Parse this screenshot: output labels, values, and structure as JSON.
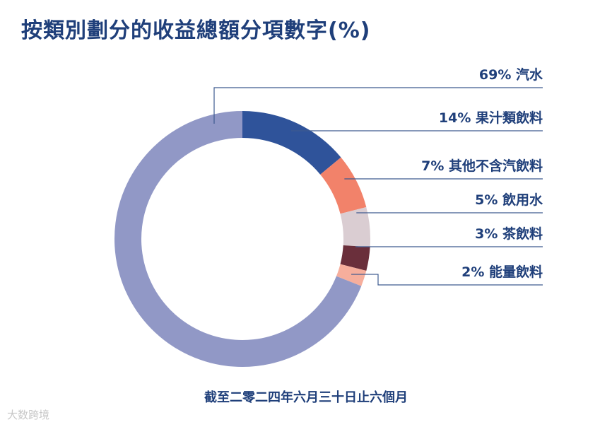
{
  "title": "按類別劃分的收益總額分項數字(%)",
  "subtitle": "截至二零二四年六月三十日止六個月",
  "watermark": "大数跨境",
  "chart_data": {
    "type": "pie",
    "variant": "donut",
    "title": "按類別劃分的收益總額分項數字(%)",
    "subtitle": "截至二零二四年六月三十日止六個月",
    "unit": "%",
    "slices": [
      {
        "label": "汽水",
        "value": 69,
        "color": "#9198c6"
      },
      {
        "label": "果汁類飲料",
        "value": 14,
        "color": "#2f539a"
      },
      {
        "label": "其他不含汽飲料",
        "value": 7,
        "color": "#f2826a"
      },
      {
        "label": "飲用水",
        "value": 5,
        "color": "#dacdd2"
      },
      {
        "label": "茶飲料",
        "value": 3,
        "color": "#6a2f3b"
      },
      {
        "label": "能量飲料",
        "value": 2,
        "color": "#f6ae9c"
      }
    ],
    "label_color": "#1f3f7a",
    "leader_color": "#3d5a8f"
  }
}
